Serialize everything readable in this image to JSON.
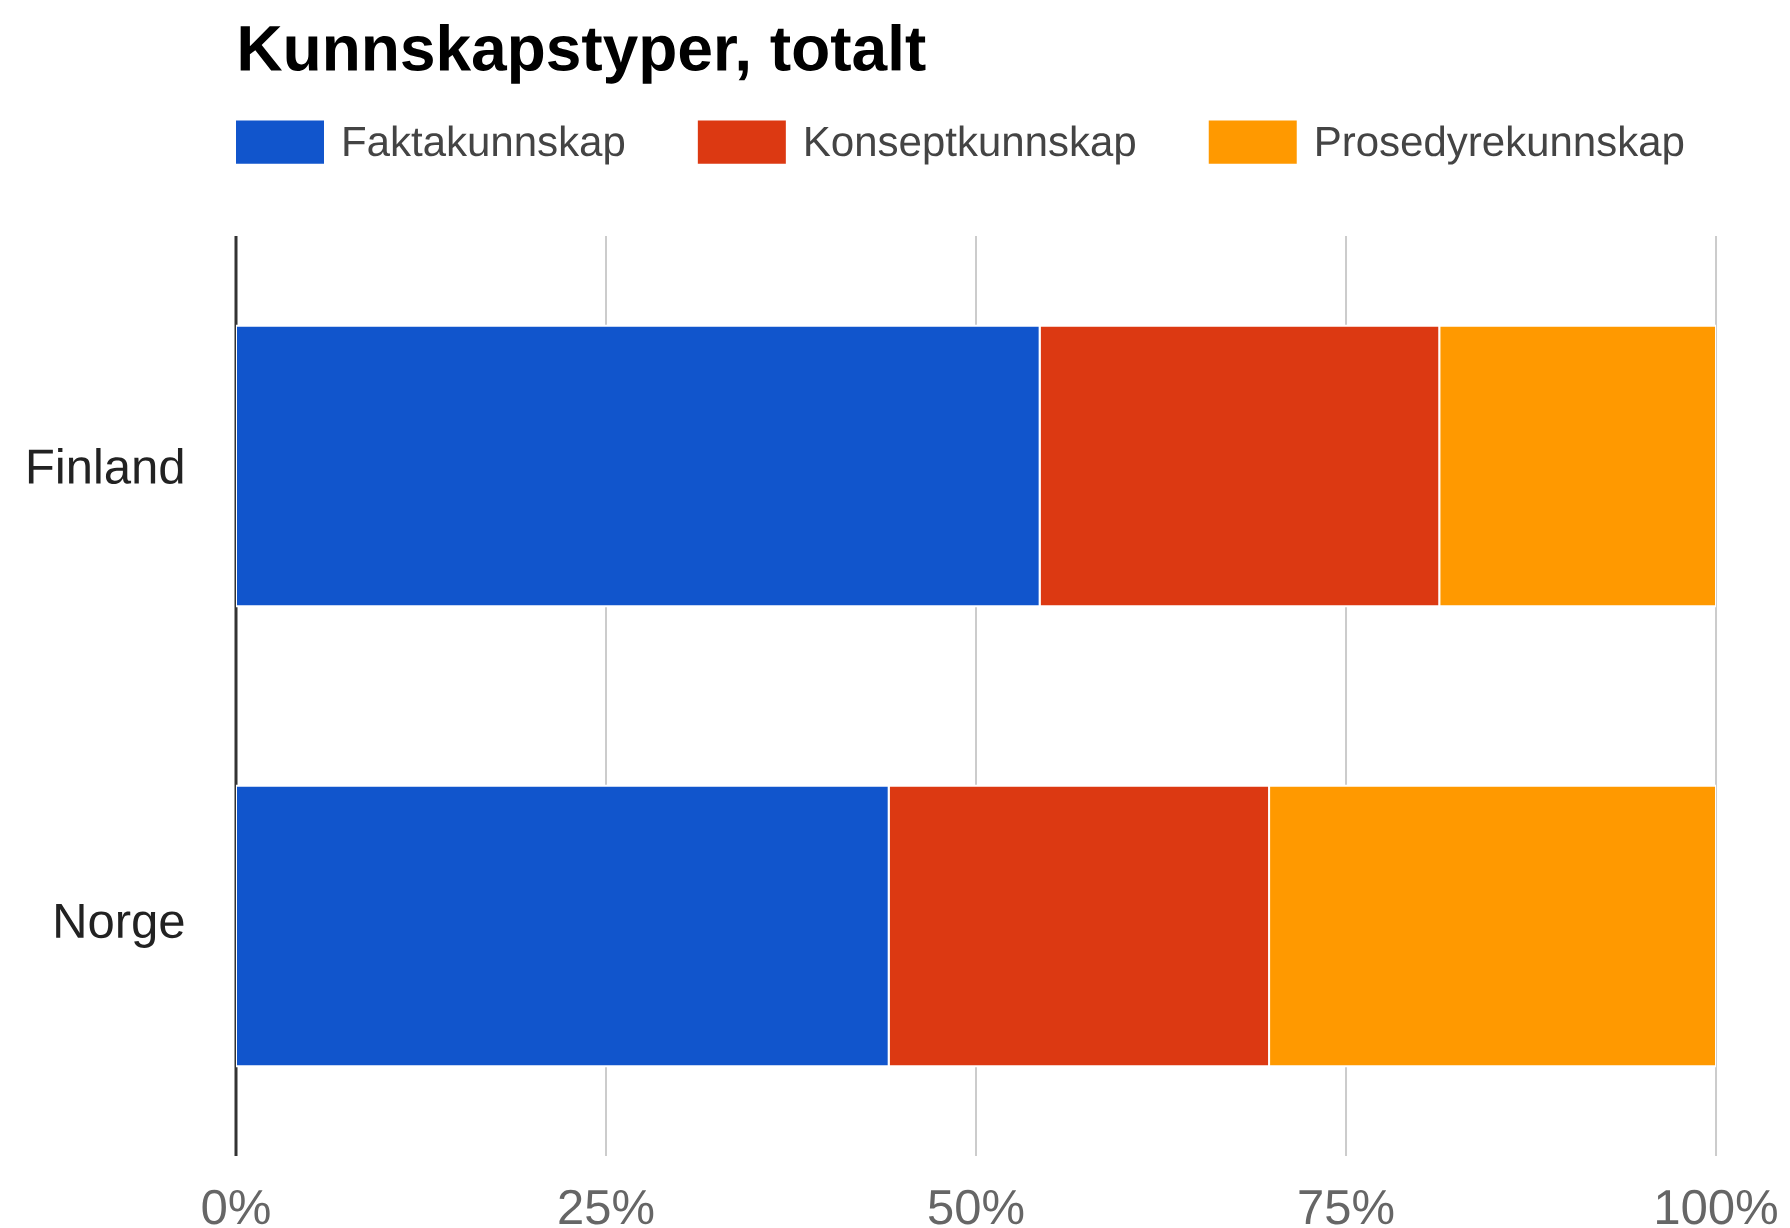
{
  "chart_data": {
    "type": "bar",
    "title": "Kunnskapstyper, totalt",
    "orientation": "horizontal",
    "stacked": true,
    "categories": [
      "Finland",
      "Norge"
    ],
    "series": [
      {
        "name": "Faktakunnskap",
        "color": "#1155cc",
        "values": [
          54.3,
          44.1
        ]
      },
      {
        "name": "Konseptkunnskap",
        "color": "#dc3912",
        "values": [
          27.0,
          25.7
        ]
      },
      {
        "name": "Prosedyrekunnskap",
        "color": "#ff9900",
        "values": [
          18.7,
          30.2
        ]
      }
    ],
    "xlim": [
      0,
      100
    ],
    "xticks": [
      {
        "value": 0,
        "label": "0%"
      },
      {
        "value": 25,
        "label": "25%"
      },
      {
        "value": 50,
        "label": "50%"
      },
      {
        "value": 75,
        "label": "75%"
      },
      {
        "value": 100,
        "label": "100%"
      }
    ],
    "grid": "x",
    "legend": "top"
  }
}
